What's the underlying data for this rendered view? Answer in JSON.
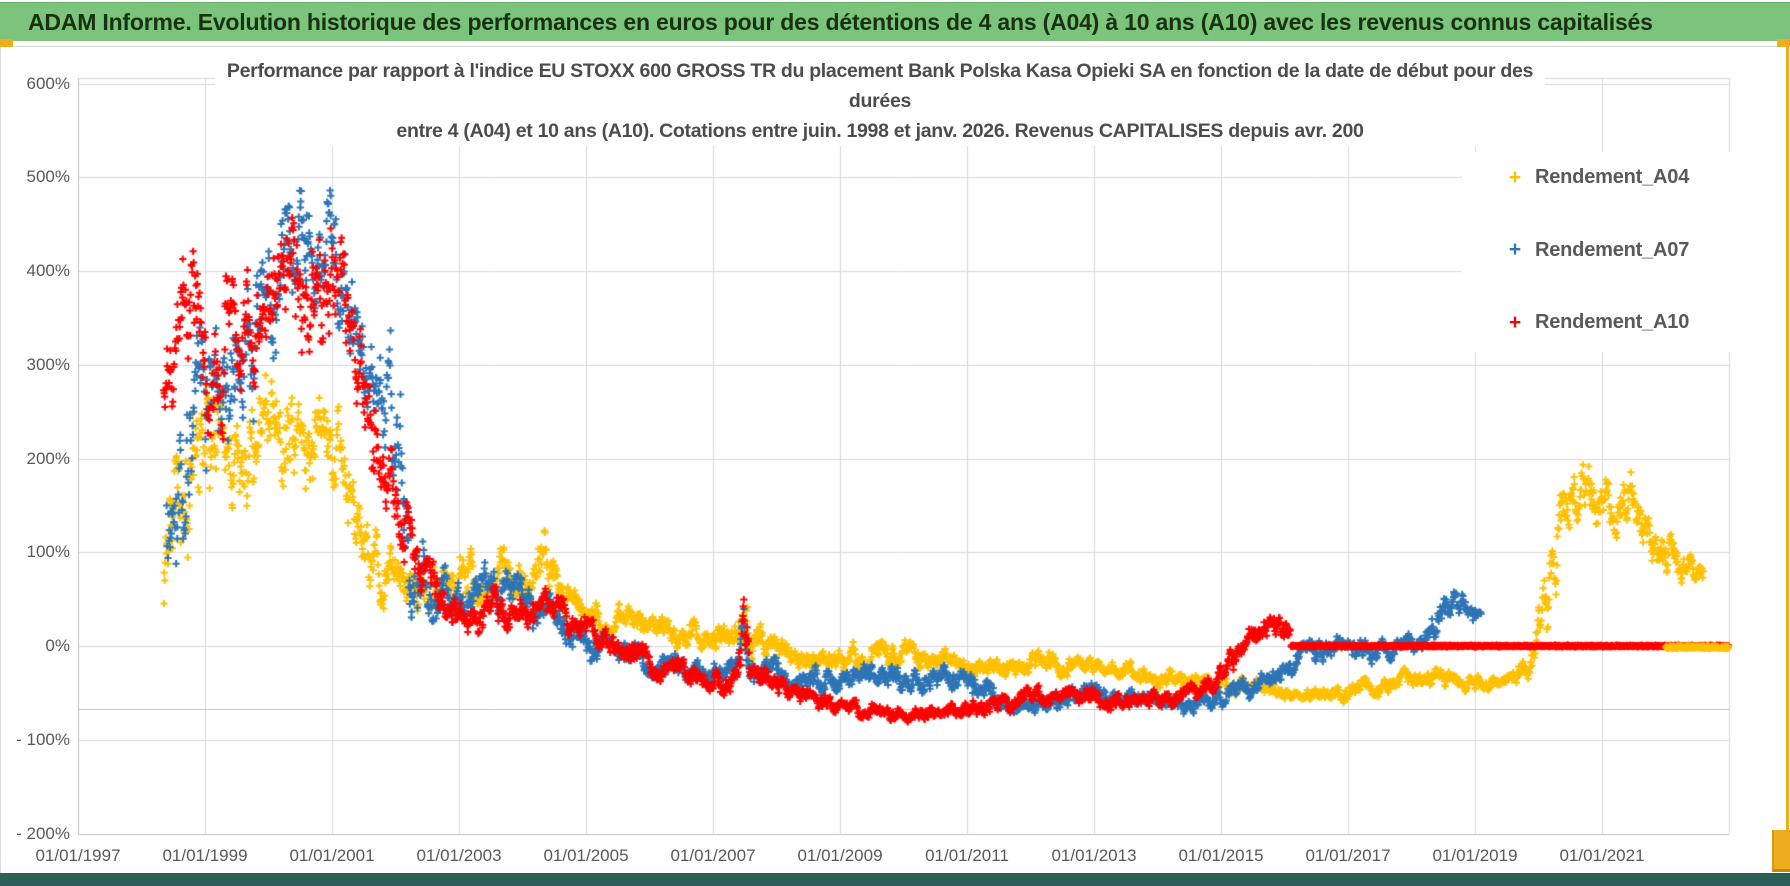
{
  "window": {
    "header": {
      "title": "ADAM Informe. Evolution historique des performances en euros pour des détentions de 4 ans (A04) à 10 ans (A10) avec les revenus connus capitalisés"
    }
  },
  "colors": {
    "header_bg": "#7cc47c",
    "header_text": "#16320f",
    "accent_gold": "#eead1d",
    "footer_strip": "#2b5f55",
    "gridline": "#d9d9d9",
    "axis_line": "#bfbfbf",
    "axis_cross_line": "#c6c6c6",
    "text_gray": "#595959"
  },
  "chart_data": {
    "type": "scatter",
    "marker": "plus",
    "grid": true,
    "legend_position": "right-top",
    "title_lines": [
      "Performance par rapport à l'indice EU STOXX 600 GROSS TR  du placement Bank Polska Kasa Opieki SA en fonction de la date de début pour des",
      "durées",
      "entre 4 (A04) et 10 ans (A10). Cotations entre juin. 1998 et janv. 2026. Revenus CAPITALISES depuis avr. 200"
    ],
    "x_range_years": [
      1997,
      2023
    ],
    "y_range_pct": [
      -200,
      600
    ],
    "x_tick_years": [
      1997,
      1999,
      2001,
      2003,
      2005,
      2007,
      2009,
      2011,
      2013,
      2015,
      2017,
      2019,
      2021
    ],
    "x_tick_labels": [
      "01/01/1997",
      "01/01/1999",
      "01/01/2001",
      "01/01/2003",
      "01/01/2005",
      "01/01/2007",
      "01/01/2009",
      "01/01/2011",
      "01/01/2013",
      "01/01/2015",
      "01/01/2017",
      "01/01/2019",
      "01/01/2021"
    ],
    "y_tick_values": [
      600,
      500,
      400,
      300,
      200,
      100,
      0,
      -100,
      -200
    ],
    "y_tick_labels": [
      "600%",
      "500%",
      "400%",
      "300%",
      "200%",
      "100%",
      "0%",
      "- 100%",
      "- 200%"
    ],
    "axis_cross_line_pct": -66.7,
    "series": [
      {
        "name": "Rendement_A04",
        "color": "#FFC000",
        "seed": 7,
        "points_per_year": 120,
        "anchors": [
          [
            1998.35,
            90,
            70
          ],
          [
            1998.7,
            150,
            110
          ],
          [
            1999.1,
            200,
            70
          ],
          [
            1999.6,
            205,
            60
          ],
          [
            2000.1,
            230,
            60
          ],
          [
            2000.5,
            210,
            55
          ],
          [
            2000.9,
            225,
            55
          ],
          [
            2001.25,
            160,
            55
          ],
          [
            2001.7,
            90,
            40
          ],
          [
            2002.1,
            62,
            28
          ],
          [
            2002.6,
            60,
            28
          ],
          [
            2003.1,
            72,
            28
          ],
          [
            2003.6,
            80,
            26
          ],
          [
            2004.05,
            62,
            25
          ],
          [
            2004.3,
            95,
            32
          ],
          [
            2004.6,
            55,
            22
          ],
          [
            2005.0,
            38,
            18
          ],
          [
            2005.6,
            25,
            15
          ],
          [
            2006.3,
            18,
            15
          ],
          [
            2007.0,
            12,
            15
          ],
          [
            2007.38,
            15,
            18
          ],
          [
            2007.48,
            60,
            62
          ],
          [
            2007.6,
            5,
            18
          ],
          [
            2008.1,
            -5,
            14
          ],
          [
            2008.7,
            -14,
            12
          ],
          [
            2009.3,
            -12,
            14
          ],
          [
            2010.0,
            -8,
            13
          ],
          [
            2010.7,
            -15,
            12
          ],
          [
            2011.4,
            -22,
            12
          ],
          [
            2012.1,
            -15,
            12
          ],
          [
            2012.8,
            -22,
            11
          ],
          [
            2013.5,
            -27,
            10
          ],
          [
            2014.2,
            -33,
            10
          ],
          [
            2015.0,
            -40,
            10
          ],
          [
            2015.7,
            -47,
            9
          ],
          [
            2016.4,
            -55,
            8
          ],
          [
            2017.1,
            -48,
            9
          ],
          [
            2017.8,
            -38,
            10
          ],
          [
            2018.4,
            -30,
            11
          ],
          [
            2018.9,
            -38,
            9
          ],
          [
            2019.4,
            -42,
            8
          ],
          [
            2019.8,
            -25,
            12
          ],
          [
            2020.15,
            60,
            45
          ],
          [
            2020.5,
            150,
            40
          ],
          [
            2020.8,
            165,
            35
          ],
          [
            2021.1,
            150,
            32
          ],
          [
            2021.45,
            155,
            30
          ],
          [
            2021.8,
            120,
            28
          ],
          [
            2022.15,
            95,
            22
          ],
          [
            2022.6,
            72,
            14
          ]
        ]
      },
      {
        "name": "Rendement_A07",
        "color": "#2E75B6",
        "seed": 13,
        "points_per_year": 120,
        "anchors": [
          [
            1998.4,
            150,
            80
          ],
          [
            1998.8,
            230,
            90
          ],
          [
            1999.2,
            290,
            80
          ],
          [
            1999.7,
            330,
            85
          ],
          [
            2000.1,
            375,
            75
          ],
          [
            2000.5,
            410,
            70
          ],
          [
            2000.85,
            430,
            70
          ],
          [
            2001.15,
            390,
            60
          ],
          [
            2001.5,
            320,
            55
          ],
          [
            2001.8,
            280,
            50
          ],
          [
            2002.0,
            190,
            120
          ],
          [
            2002.2,
            90,
            70
          ],
          [
            2002.5,
            58,
            30
          ],
          [
            2003.0,
            52,
            26
          ],
          [
            2003.5,
            62,
            24
          ],
          [
            2004.0,
            52,
            24
          ],
          [
            2004.5,
            30,
            20
          ],
          [
            2005.0,
            5,
            16
          ],
          [
            2005.6,
            -12,
            14
          ],
          [
            2006.2,
            -20,
            14
          ],
          [
            2006.9,
            -32,
            13
          ],
          [
            2007.38,
            -22,
            14
          ],
          [
            2007.48,
            8,
            38
          ],
          [
            2007.6,
            -22,
            14
          ],
          [
            2008.2,
            -32,
            13
          ],
          [
            2008.8,
            -38,
            13
          ],
          [
            2009.4,
            -28,
            14
          ],
          [
            2010.0,
            -38,
            13
          ],
          [
            2010.6,
            -33,
            13
          ],
          [
            2011.2,
            -48,
            12
          ],
          [
            2011.8,
            -63,
            11
          ],
          [
            2012.4,
            -58,
            11
          ],
          [
            2013.0,
            -52,
            11
          ],
          [
            2013.7,
            -58,
            10
          ],
          [
            2014.4,
            -62,
            10
          ],
          [
            2015.1,
            -52,
            10
          ],
          [
            2015.7,
            -42,
            11
          ],
          [
            2016.3,
            -12,
            13
          ],
          [
            2016.8,
            2,
            13
          ],
          [
            2017.3,
            -6,
            11
          ],
          [
            2017.8,
            -2,
            11
          ],
          [
            2018.3,
            22,
            16
          ],
          [
            2018.65,
            50,
            16
          ],
          [
            2018.9,
            42,
            13
          ],
          [
            2019.1,
            32,
            10
          ]
        ]
      },
      {
        "name": "Rendement_A10",
        "color": "#FE0000",
        "seed": 29,
        "points_per_year": 120,
        "anchors": [
          [
            1998.35,
            300,
            65
          ],
          [
            1998.7,
            395,
            70
          ],
          [
            1999.05,
            290,
            75
          ],
          [
            1999.45,
            315,
            70
          ],
          [
            1999.85,
            345,
            75
          ],
          [
            2000.2,
            420,
            65
          ],
          [
            2000.55,
            395,
            75
          ],
          [
            2000.95,
            385,
            85
          ],
          [
            2001.3,
            330,
            65
          ],
          [
            2001.7,
            225,
            55
          ],
          [
            2002.05,
            140,
            45
          ],
          [
            2002.4,
            70,
            30
          ],
          [
            2002.8,
            42,
            22
          ],
          [
            2003.3,
            35,
            20
          ],
          [
            2003.8,
            42,
            20
          ],
          [
            2004.3,
            48,
            20
          ],
          [
            2004.8,
            22,
            15
          ],
          [
            2005.3,
            4,
            14
          ],
          [
            2005.9,
            -16,
            14
          ],
          [
            2006.5,
            -30,
            13
          ],
          [
            2007.1,
            -40,
            12
          ],
          [
            2007.38,
            -32,
            13
          ],
          [
            2007.48,
            25,
            55
          ],
          [
            2007.62,
            -32,
            13
          ],
          [
            2008.2,
            -48,
            11
          ],
          [
            2008.8,
            -62,
            10
          ],
          [
            2009.4,
            -70,
            9
          ],
          [
            2010.0,
            -74,
            8
          ],
          [
            2010.6,
            -70,
            9
          ],
          [
            2011.2,
            -68,
            9
          ],
          [
            2011.8,
            -58,
            10
          ],
          [
            2012.4,
            -50,
            10
          ],
          [
            2013.0,
            -54,
            10
          ],
          [
            2013.6,
            -60,
            9
          ],
          [
            2014.2,
            -56,
            9
          ],
          [
            2014.8,
            -42,
            11
          ],
          [
            2015.2,
            -18,
            14
          ],
          [
            2015.55,
            12,
            18
          ],
          [
            2015.85,
            28,
            14
          ],
          [
            2016.1,
            18,
            12
          ]
        ]
      }
    ],
    "zero_segments": [
      {
        "series": "Rendement_A10",
        "from": 2016.1,
        "to": 2023.0,
        "value": 0,
        "thick": true
      },
      {
        "series": "Rendement_A04",
        "from": 2022.0,
        "to": 2023.0,
        "value": 0,
        "thick": false
      }
    ]
  }
}
